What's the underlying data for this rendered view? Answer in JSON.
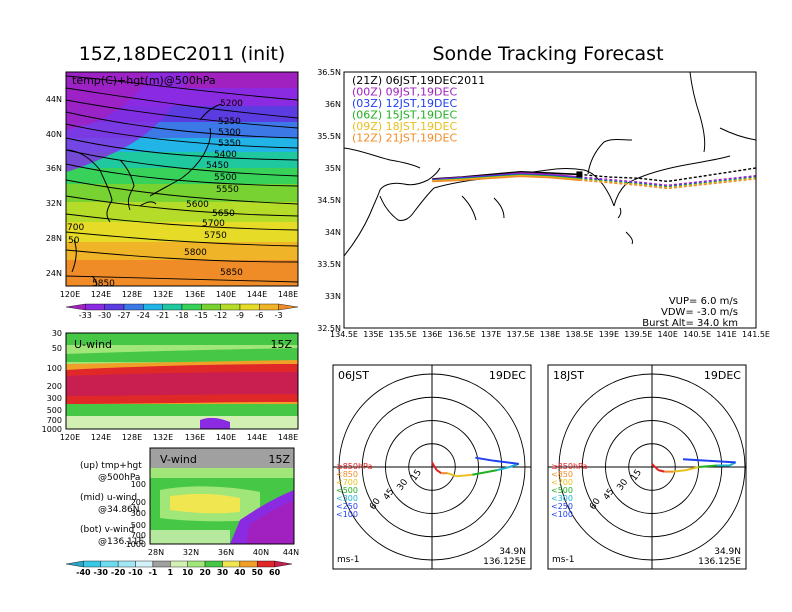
{
  "left_title": "15Z,18DEC2011 (init)",
  "right_title": "Sonde Tracking Forecast",
  "map_panel": {
    "label": "temp(C)+hgt(m)@500hPa",
    "x_ticks": [
      "120E",
      "124E",
      "128E",
      "132E",
      "136E",
      "140E",
      "144E",
      "148E"
    ],
    "y_ticks": [
      "44N",
      "40N",
      "36N",
      "32N",
      "28N",
      "24N"
    ],
    "contour_labels": [
      "5200",
      "5250",
      "5300",
      "5350",
      "5400",
      "5450",
      "5500",
      "5550",
      "5600",
      "5650",
      "5700",
      "5750",
      "5800",
      "5850",
      "5850",
      "700",
      "50"
    ],
    "colorbar_ticks": [
      "-33",
      "-30",
      "-27",
      "-24",
      "-21",
      "-18",
      "-15",
      "-12",
      "-9",
      "-6",
      "-3"
    ],
    "colorbar_colors": [
      "#a020c0",
      "#8a2be2",
      "#5a3ce0",
      "#3c78e6",
      "#22b4e6",
      "#20c8a0",
      "#38d25a",
      "#78d232",
      "#b4dc28",
      "#e6dc28",
      "#f0b428",
      "#f08c28"
    ]
  },
  "u_panel": {
    "label": "U-wind",
    "time": "15Z",
    "y_ticks": [
      "30",
      "50",
      "100",
      "200",
      "300",
      "500",
      "700",
      "1000"
    ],
    "x_ticks": [
      "120E",
      "124E",
      "128E",
      "132E",
      "136E",
      "140E",
      "144E",
      "148E"
    ]
  },
  "v_panel": {
    "label": "V-wind",
    "time": "15Z",
    "y_ticks": [
      "100",
      "200",
      "300",
      "500",
      "700",
      "1000"
    ],
    "x_ticks": [
      "28N",
      "32N",
      "36N",
      "40N",
      "44N"
    ]
  },
  "legend_notes": [
    {
      "head": "(up) tmp+hgt",
      "sub": "@500hPa"
    },
    {
      "head": "(mid) u-wind",
      "sub": "@34.86N"
    },
    {
      "head": "(bot) v-wind",
      "sub": "@136.11E"
    }
  ],
  "wind_colorbar": {
    "ticks": [
      "-40",
      "-30",
      "-20",
      "-10",
      "-1",
      "1",
      "10",
      "20",
      "30",
      "40",
      "50",
      "60"
    ],
    "colors": [
      "#2aa5c8",
      "#38c8e6",
      "#6edcf0",
      "#a0e6f5",
      "#d2f0f8",
      "#a0a0a0",
      "#d2f0b4",
      "#a0e678",
      "#46c846",
      "#f0e650",
      "#f0a028",
      "#e02828",
      "#c81e50"
    ]
  },
  "colors": {
    "t21": "#000000",
    "t00": "#a020c0",
    "t03": "#2040f0",
    "t06": "#20b020",
    "t09": "#e8c020",
    "t12": "#f08c28",
    "red": "#e02020"
  },
  "chart_data": {
    "type": "line",
    "title": "Sonde Tracking Forecast",
    "x_ticks": [
      "134.5E",
      "135E",
      "135.5E",
      "136E",
      "136.5E",
      "137E",
      "137.5E",
      "138E",
      "138.5E",
      "139E",
      "139.5E",
      "140E",
      "140.5E",
      "141E",
      "141.5E"
    ],
    "y_ticks": [
      "36.5N",
      "36N",
      "35.5N",
      "35N",
      "34.5N",
      "34N",
      "33.5N",
      "33N",
      "32.5N"
    ],
    "xlim": [
      134.5,
      141.5
    ],
    "ylim": [
      32.5,
      36.5
    ],
    "series": [
      {
        "name": "(21Z) 06JST,19DEC2011",
        "color": "#000000",
        "x": [
          136.0,
          136.5,
          137.0,
          137.5,
          138.0,
          138.5,
          139.0,
          139.5,
          140.0,
          140.5,
          141.0,
          141.5
        ],
        "y": [
          34.83,
          34.86,
          34.9,
          34.94,
          34.92,
          34.9,
          34.86,
          34.84,
          34.79,
          34.86,
          34.93,
          35.0
        ]
      },
      {
        "name": "(00Z) 09JST,19DEC",
        "color": "#a020c0",
        "x": [
          136.0,
          136.5,
          137.0,
          137.5,
          138.0,
          138.5,
          139.0,
          139.5,
          140.0,
          140.5,
          141.0,
          141.5
        ],
        "y": [
          34.82,
          34.85,
          34.88,
          34.92,
          34.9,
          34.86,
          34.82,
          34.78,
          34.73,
          34.78,
          34.83,
          34.88
        ]
      },
      {
        "name": "(03Z) 12JST,19DEC",
        "color": "#2040f0",
        "x": [
          136.0,
          136.5,
          137.0,
          137.5,
          138.0,
          138.5,
          139.0,
          139.5,
          140.0,
          140.5,
          141.0,
          141.5
        ],
        "y": [
          34.81,
          34.84,
          34.87,
          34.9,
          34.88,
          34.84,
          34.8,
          34.76,
          34.71,
          34.76,
          34.81,
          34.86
        ]
      },
      {
        "name": "(06Z) 15JST,19DEC",
        "color": "#20b020",
        "x": [
          136.0,
          136.5,
          137.0,
          137.5,
          138.0,
          138.5,
          139.0,
          139.5,
          140.0,
          140.5,
          141.0,
          141.5
        ],
        "y": [
          34.8,
          34.83,
          34.86,
          34.89,
          34.87,
          34.83,
          34.79,
          34.75,
          34.7,
          34.75,
          34.8,
          34.85
        ]
      },
      {
        "name": "(09Z) 18JST,19DEC",
        "color": "#e8c020",
        "x": [
          136.0,
          136.5,
          137.0,
          137.5,
          138.0,
          138.5,
          139.0,
          139.5,
          140.0,
          140.5,
          141.0,
          141.5
        ],
        "y": [
          34.8,
          34.82,
          34.85,
          34.88,
          34.86,
          34.82,
          34.78,
          34.74,
          34.69,
          34.74,
          34.79,
          34.84
        ]
      },
      {
        "name": "(12Z) 21JST,19DEC",
        "color": "#f08c28",
        "x": [
          136.0,
          136.5,
          137.0,
          137.5,
          138.0,
          138.5,
          139.0,
          139.5,
          140.0,
          140.5,
          141.0,
          141.5
        ],
        "y": [
          34.79,
          34.81,
          34.84,
          34.87,
          34.85,
          34.81,
          34.77,
          34.73,
          34.68,
          34.73,
          34.78,
          34.83
        ]
      }
    ],
    "annotations": [
      "VUP= 6.0 m/s",
      "VDW= -3.0 m/s",
      "Burst Alt= 34.0 km"
    ]
  },
  "hodographs": [
    {
      "time": "06JST",
      "date": "19DEC",
      "rings": [
        "15",
        "30",
        "45",
        "60"
      ],
      "levels": [
        "≥850hPa",
        "<850",
        "<700",
        "<500",
        "<300",
        "<250",
        "<100"
      ],
      "level_colors": [
        "#e02020",
        "#f08c28",
        "#e8c020",
        "#20b020",
        "#20b0d0",
        "#2040f0",
        "#2040f0"
      ],
      "lat": "34.9N",
      "lon": "136.125E",
      "unit": "ms-1",
      "u": [
        0,
        3,
        6,
        10,
        16,
        26,
        42,
        50,
        56,
        40,
        28
      ],
      "v": [
        3,
        -2,
        -4,
        -4,
        -6,
        -5,
        -2,
        0,
        2,
        4,
        6
      ]
    },
    {
      "time": "18JST",
      "date": "19DEC",
      "rings": [
        "15",
        "30",
        "45",
        "60"
      ],
      "levels": [
        "≥850hPa",
        "<850",
        "<700",
        "<500",
        "<300",
        "<250",
        "<100"
      ],
      "level_colors": [
        "#e02020",
        "#f08c28",
        "#e8c020",
        "#20b020",
        "#20b0d0",
        "#2040f0",
        "#2040f0"
      ],
      "lat": "34.9N",
      "lon": "136.125E",
      "unit": "ms-1",
      "u": [
        0,
        4,
        8,
        14,
        22,
        30,
        42,
        50,
        54,
        36,
        20
      ],
      "v": [
        2,
        -2,
        -3,
        -3,
        -2,
        0,
        1,
        1,
        3,
        4,
        5
      ]
    }
  ]
}
